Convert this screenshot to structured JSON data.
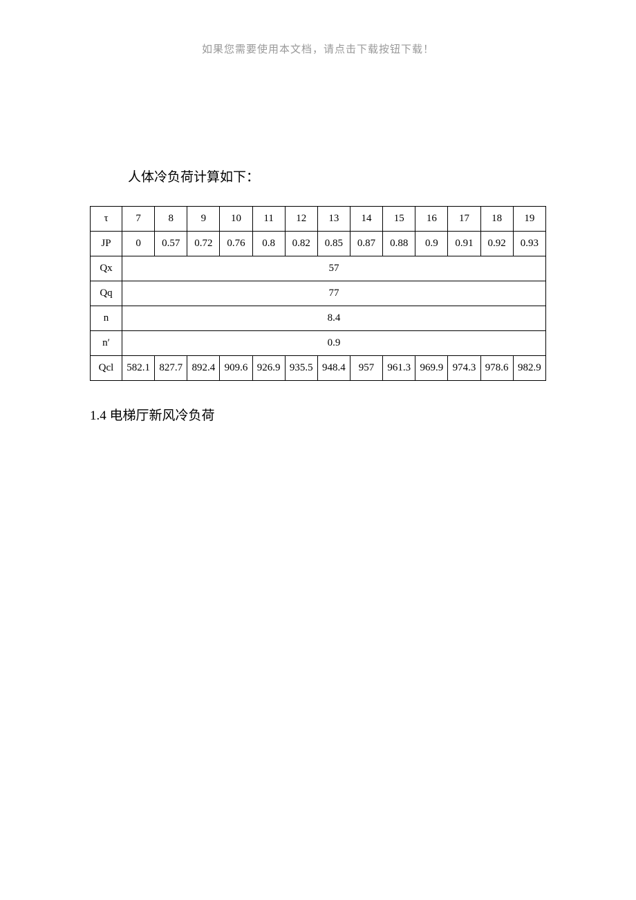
{
  "header": {
    "notice": "如果您需要使用本文档，请点击下载按钮下载！"
  },
  "sub_title": "人体冷负荷计算如下：",
  "table": {
    "row_tau": {
      "label": "τ",
      "cells": [
        "7",
        "8",
        "9",
        "10",
        "11",
        "12",
        "13",
        "14",
        "15",
        "16",
        "17",
        "18",
        "19"
      ]
    },
    "row_jp": {
      "label": "JP",
      "cells": [
        "0",
        "0.57",
        "0.72",
        "0.76",
        "0.8",
        "0.82",
        "0.85",
        "0.87",
        "0.88",
        "0.9",
        "0.91",
        "0.92",
        "0.93"
      ]
    },
    "row_qx": {
      "label": "Qx",
      "value": "57"
    },
    "row_qq": {
      "label": "Qq",
      "value": "77"
    },
    "row_n": {
      "label": "n",
      "value": "8.4"
    },
    "row_nprime": {
      "label": "n′",
      "value": "0.9"
    },
    "row_qcl": {
      "label": "Qcl",
      "cells": [
        "582.1",
        "827.7",
        "892.4",
        "909.6",
        "926.9",
        "935.5",
        "948.4",
        "957",
        "961.3",
        "969.9",
        "974.3",
        "978.6",
        "982.9"
      ]
    }
  },
  "section_heading": "1.4 电梯厅新风冷负荷",
  "style": {
    "background_color": "#ffffff",
    "border_color": "#000000",
    "text_color": "#000000",
    "notice_color": "#999999",
    "font_family": "SimSun",
    "title_fontsize": 19,
    "cell_fontsize": 15
  }
}
